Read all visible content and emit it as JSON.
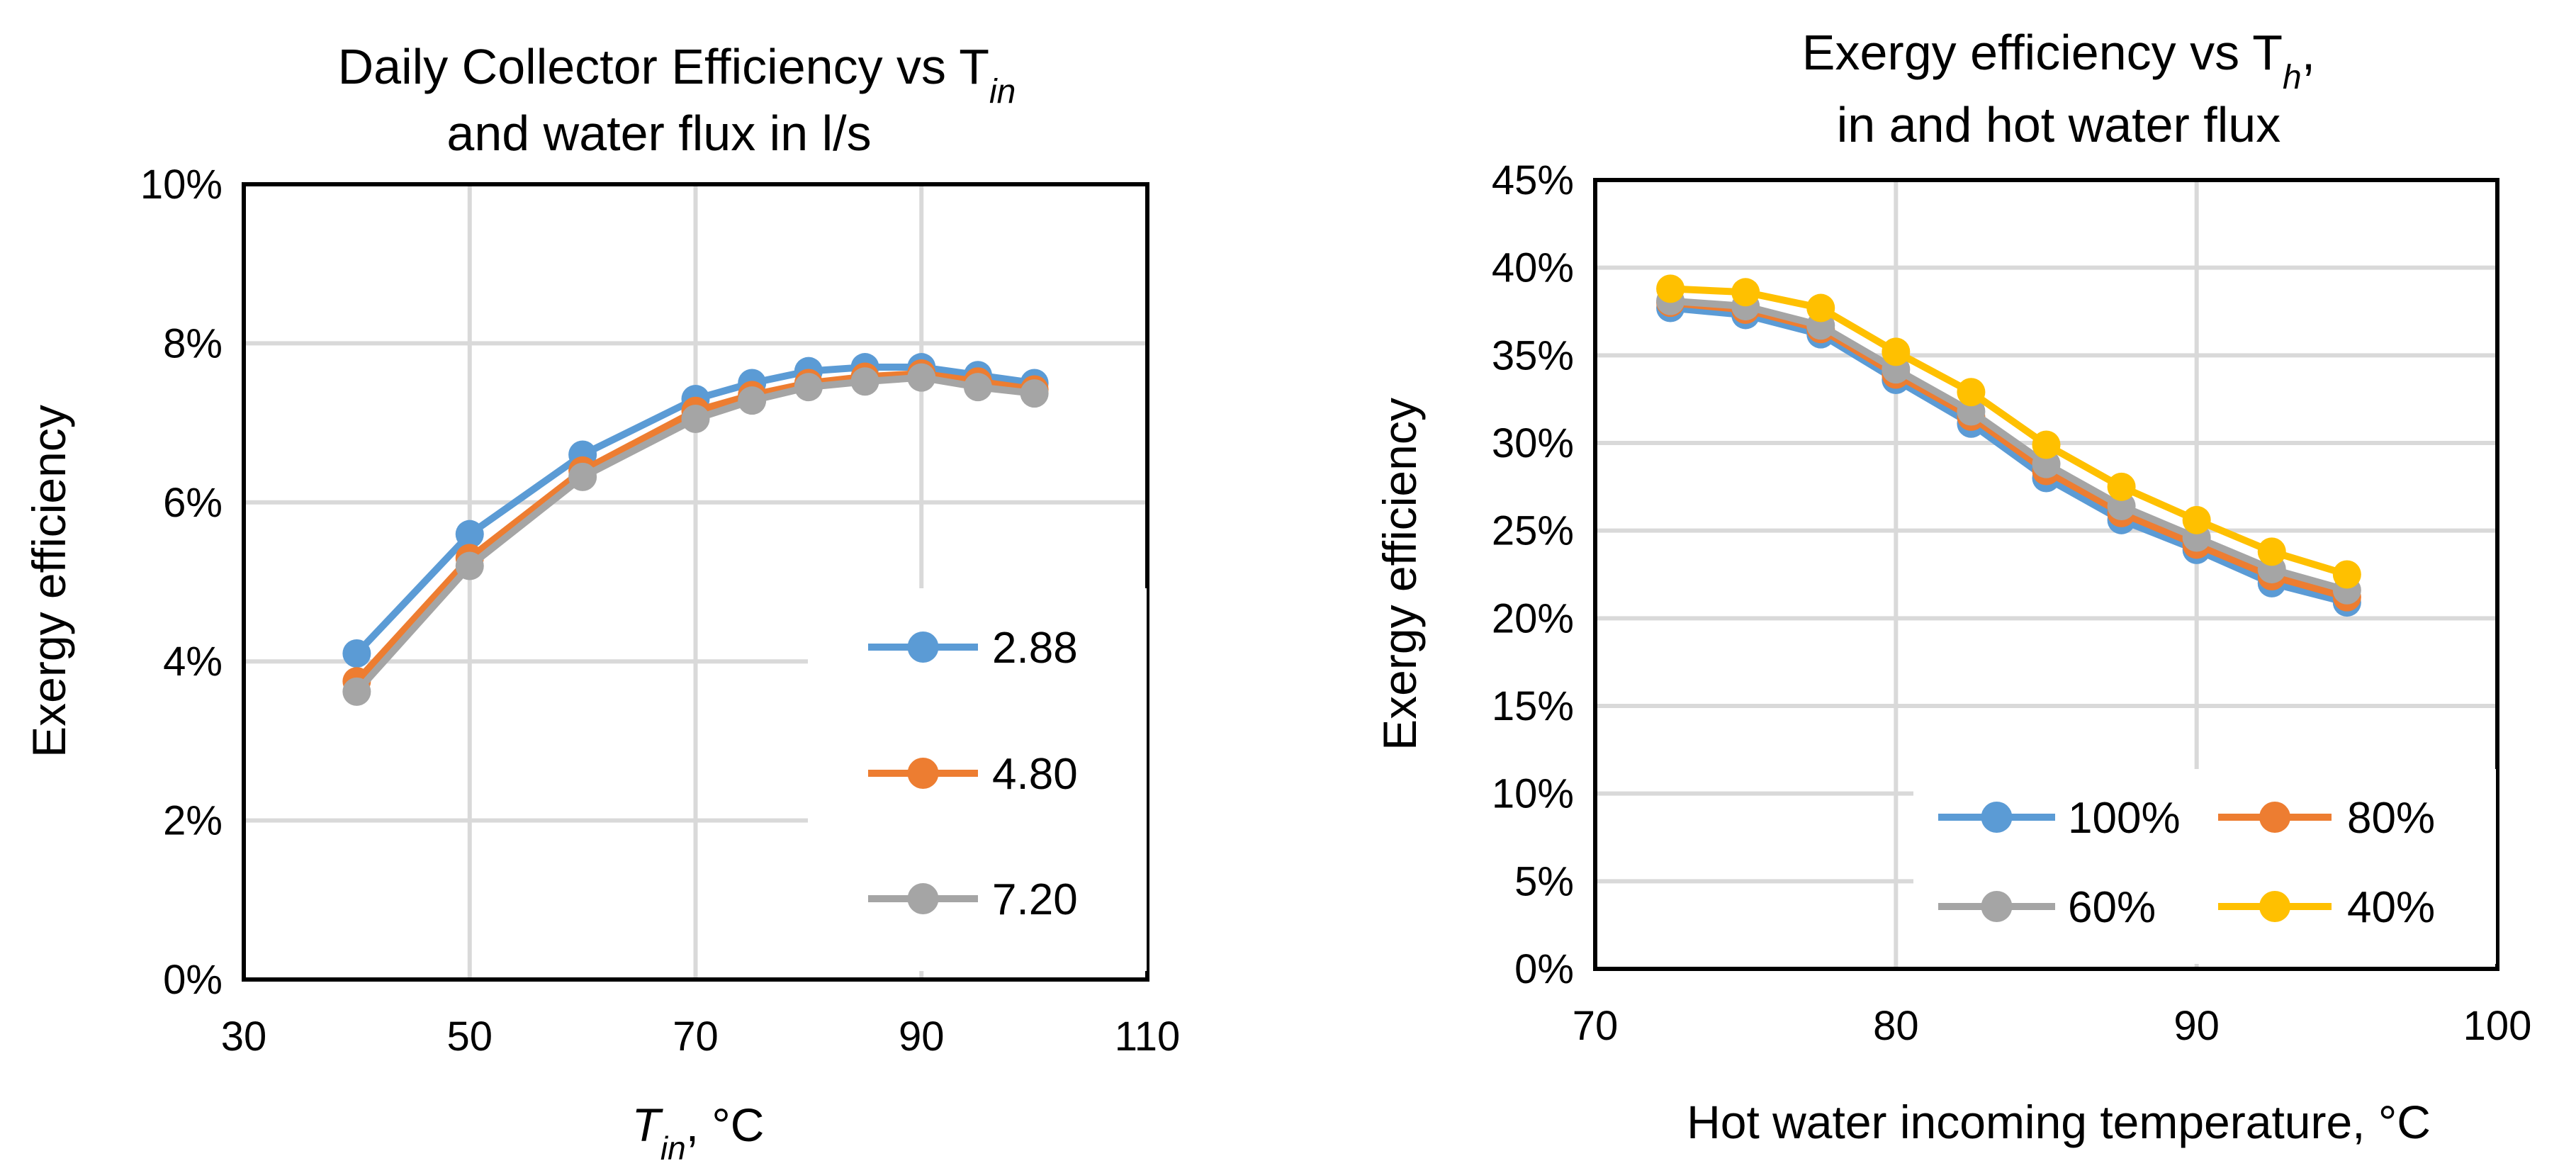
{
  "chart_data": [
    {
      "type": "line",
      "title": "Daily Collector Efficiency vs T",
      "title_sub": "in",
      "title_line2": "and water flux in l/s",
      "ylabel": "Exergy efficiency",
      "xlabel_main": "T",
      "xlabel_sub": "in",
      "xlabel_rest": ", °C",
      "xlim": [
        30,
        110
      ],
      "ylim": [
        0,
        0.1
      ],
      "x_ticks": [
        30,
        50,
        70,
        90,
        110
      ],
      "x_tick_labels": [
        "30",
        "50",
        "70",
        "90",
        "110"
      ],
      "y_ticks": [
        0,
        0.02,
        0.04,
        0.06,
        0.08,
        0.1
      ],
      "y_tick_labels": [
        "0%",
        "2%",
        "4%",
        "6%",
        "8%",
        "10%"
      ],
      "grid": true,
      "legend_position": "bottom-right",
      "x": [
        40,
        50,
        60,
        70,
        75,
        80,
        85,
        90,
        95,
        100
      ],
      "series": [
        {
          "name": "2.88",
          "color": "#5b9bd5",
          "values": [
            0.041,
            0.056,
            0.066,
            0.073,
            0.075,
            0.0765,
            0.077,
            0.077,
            0.076,
            0.075
          ]
        },
        {
          "name": "4.80",
          "color": "#ed7d31",
          "values": [
            0.0375,
            0.053,
            0.064,
            0.0715,
            0.0735,
            0.075,
            0.0758,
            0.0762,
            0.0752,
            0.0742
          ]
        },
        {
          "name": "7.20",
          "color": "#a5a5a5",
          "values": [
            0.0362,
            0.052,
            0.0632,
            0.0705,
            0.0728,
            0.0745,
            0.0752,
            0.0757,
            0.0745,
            0.0737
          ]
        }
      ]
    },
    {
      "type": "line",
      "title": "Exergy efficiency vs T",
      "title_sub": "h",
      "title_suffix": ",",
      "title_line2": "in and hot water flux",
      "ylabel": "Exergy efficiency",
      "xlabel": "Hot water incoming temperature, °C",
      "xlim": [
        70,
        100
      ],
      "ylim": [
        0,
        0.45
      ],
      "x_ticks": [
        70,
        80,
        90,
        100
      ],
      "x_tick_labels": [
        "70",
        "80",
        "90",
        "100"
      ],
      "y_ticks": [
        0,
        0.05,
        0.1,
        0.15,
        0.2,
        0.25,
        0.3,
        0.35,
        0.4,
        0.45
      ],
      "y_tick_labels": [
        "0%",
        "5%",
        "10%",
        "15%",
        "20%",
        "25%",
        "30%",
        "35%",
        "40%",
        "45%"
      ],
      "grid": true,
      "legend_position": "bottom-right",
      "x": [
        72.5,
        75,
        77.5,
        80,
        82.5,
        85,
        87.5,
        90,
        92.5,
        95
      ],
      "series": [
        {
          "name": "100%",
          "color": "#5b9bd5",
          "values": [
            0.377,
            0.373,
            0.362,
            0.336,
            0.311,
            0.28,
            0.256,
            0.239,
            0.22,
            0.209
          ]
        },
        {
          "name": "80%",
          "color": "#ed7d31",
          "values": [
            0.38,
            0.376,
            0.365,
            0.339,
            0.315,
            0.284,
            0.26,
            0.242,
            0.224,
            0.212
          ]
        },
        {
          "name": "60%",
          "color": "#a5a5a5",
          "values": [
            0.381,
            0.378,
            0.367,
            0.342,
            0.318,
            0.288,
            0.264,
            0.246,
            0.228,
            0.216
          ]
        },
        {
          "name": "40%",
          "color": "#ffc000",
          "values": [
            0.388,
            0.386,
            0.377,
            0.352,
            0.329,
            0.299,
            0.275,
            0.256,
            0.238,
            0.225
          ]
        }
      ]
    }
  ]
}
